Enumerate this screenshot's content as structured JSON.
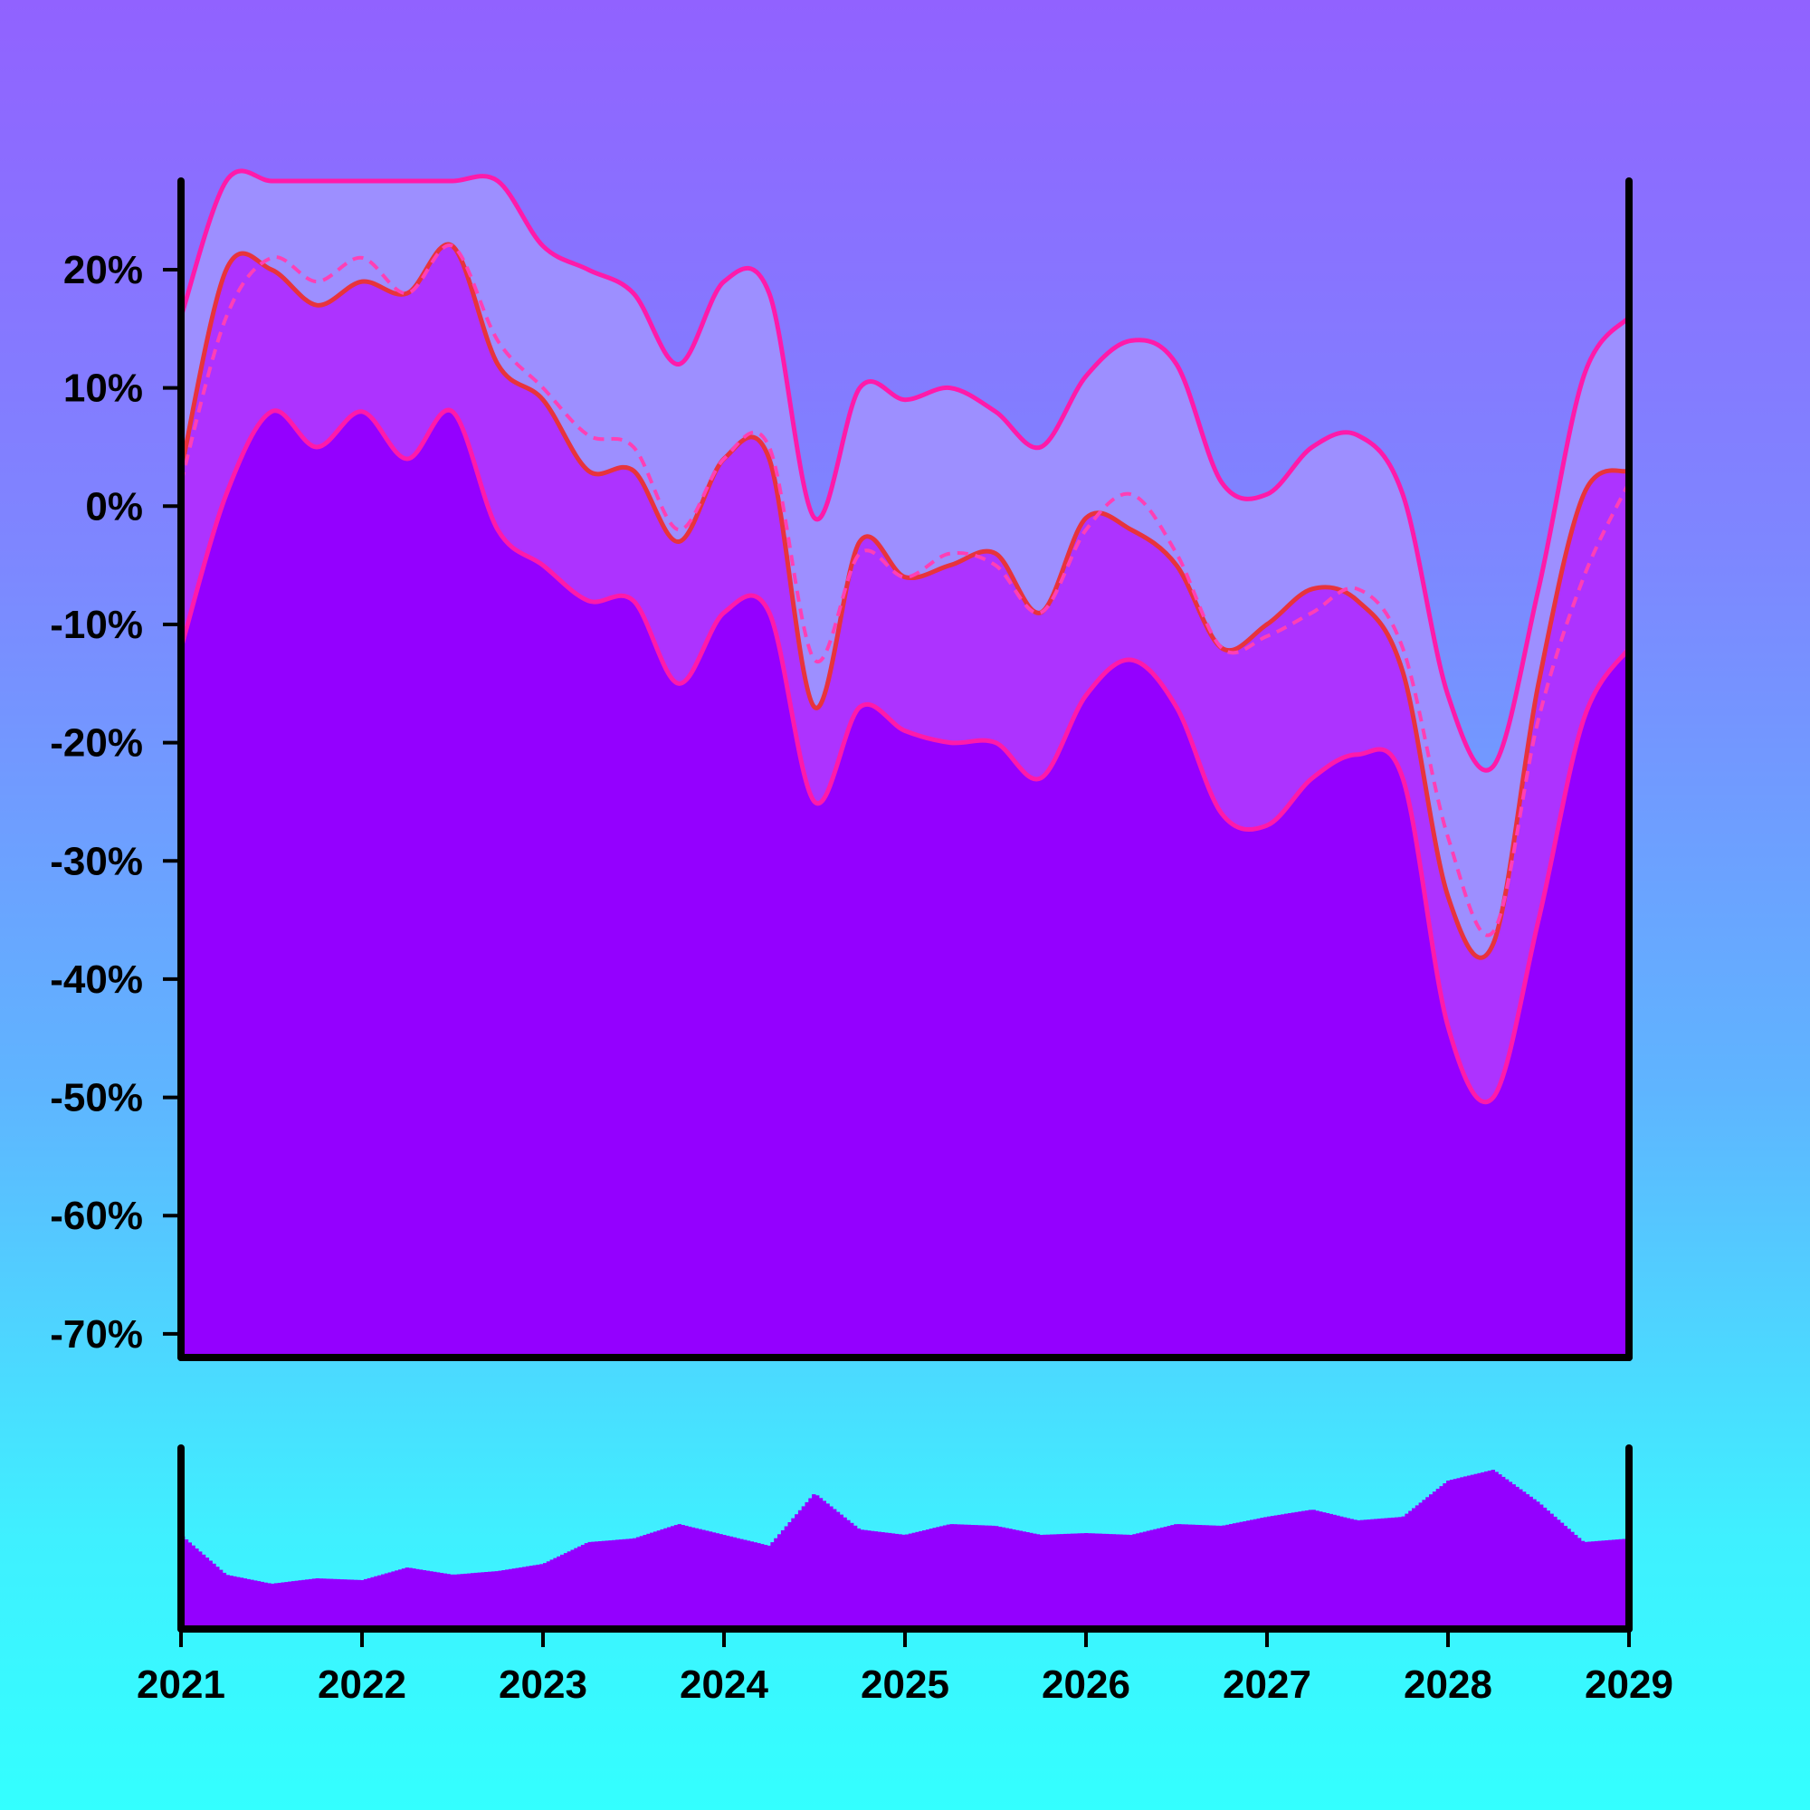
{
  "colors": {
    "background_top": "#9162ff",
    "background_bottom": "#33ffff",
    "price_fill": "#9400ff",
    "price_line": "#e8333c",
    "inner_band_fill": "#ad33ff",
    "outer_band_fill": "#9d8fff",
    "band_line": "#ff1aaa",
    "ma_line": "#ff3fb5",
    "volume": "#9400ff",
    "axis": "#000000"
  },
  "chart_data": [
    {
      "type": "area",
      "role": "price-with-bands",
      "x_tick_labels": [
        "2021",
        "2022",
        "2023",
        "2024",
        "2025",
        "2026",
        "2027",
        "2028",
        "2029"
      ],
      "y_tick_labels": [
        "20%",
        "10%",
        "0%",
        "-10%",
        "-20%",
        "-30%",
        "-40%",
        "-50%",
        "-60%",
        "-70%"
      ],
      "y_tick_values": [
        20,
        10,
        0,
        -10,
        -20,
        -30,
        -40,
        -50,
        -60,
        -70
      ],
      "xlim": [
        "2021-01-01",
        "2029-01-01"
      ],
      "ylim": [
        -72,
        27.5
      ],
      "grid": false,
      "x": [
        "2021-01",
        "2021-04",
        "2021-07",
        "2021-10",
        "2022-01",
        "2022-04",
        "2022-07",
        "2022-10",
        "2023-01",
        "2023-04",
        "2023-07",
        "2023-10",
        "2024-01",
        "2024-04",
        "2024-07",
        "2024-10",
        "2025-01",
        "2025-04",
        "2025-07",
        "2025-10",
        "2026-01",
        "2026-04",
        "2026-07",
        "2026-10",
        "2027-01",
        "2027-04",
        "2027-07",
        "2027-10",
        "2028-01",
        "2028-04",
        "2028-07",
        "2028-10",
        "2029-01"
      ],
      "series": [
        {
          "role": "price",
          "values": [
            3,
            20,
            20,
            17,
            19,
            18,
            22,
            12,
            9,
            3,
            3,
            -3,
            4,
            4,
            -17,
            -3,
            -6,
            -5,
            -4,
            -9,
            -1,
            -2,
            -5,
            -12,
            -10,
            -7,
            -8,
            -14,
            -33,
            -37,
            -15,
            1,
            3
          ]
        },
        {
          "role": "moving-average",
          "values": [
            2,
            16,
            21,
            19,
            21,
            18,
            22,
            14,
            10,
            6,
            5,
            -2,
            4,
            5,
            -13,
            -4,
            -6,
            -4,
            -5,
            -9,
            -2,
            1,
            -4,
            -12,
            -11,
            -9,
            -7,
            -12,
            -28,
            -36,
            -18,
            -6,
            2
          ]
        },
        {
          "role": "upper-band",
          "values": [
            16,
            27.5,
            27.5,
            27.5,
            27.5,
            27.5,
            27.5,
            27.5,
            22,
            20,
            18,
            12,
            19,
            18,
            -1,
            10,
            9,
            10,
            8,
            5,
            11,
            14,
            12,
            2,
            1,
            5,
            6,
            1,
            -16,
            -22,
            -7,
            11,
            16
          ]
        },
        {
          "role": "lower-band",
          "values": [
            -12,
            1,
            8,
            5,
            8,
            4,
            8,
            -2,
            -5,
            -8,
            -8,
            -15,
            -9,
            -9,
            -25,
            -17,
            -19,
            -20,
            -20,
            -23,
            -16,
            -13,
            -17,
            -26,
            -27,
            -23,
            -21,
            -23,
            -44,
            -50,
            -35,
            -18,
            -12
          ]
        }
      ]
    },
    {
      "type": "bar",
      "role": "volume",
      "x": [
        "2021-01",
        "2021-04",
        "2021-07",
        "2021-10",
        "2022-01",
        "2022-04",
        "2022-07",
        "2022-10",
        "2023-01",
        "2023-04",
        "2023-07",
        "2023-10",
        "2024-01",
        "2024-04",
        "2024-07",
        "2024-10",
        "2025-01",
        "2025-04",
        "2025-07",
        "2025-10",
        "2026-01",
        "2026-04",
        "2026-07",
        "2026-10",
        "2027-01",
        "2027-04",
        "2027-07",
        "2027-10",
        "2028-01",
        "2028-04",
        "2028-07",
        "2028-10",
        "2029-01"
      ],
      "values": [
        0.52,
        0.3,
        0.25,
        0.28,
        0.27,
        0.34,
        0.3,
        0.32,
        0.36,
        0.48,
        0.5,
        0.58,
        0.52,
        0.46,
        0.75,
        0.55,
        0.52,
        0.58,
        0.57,
        0.52,
        0.53,
        0.52,
        0.58,
        0.57,
        0.62,
        0.66,
        0.6,
        0.62,
        0.82,
        0.88,
        0.7,
        0.48,
        0.5
      ]
    }
  ]
}
